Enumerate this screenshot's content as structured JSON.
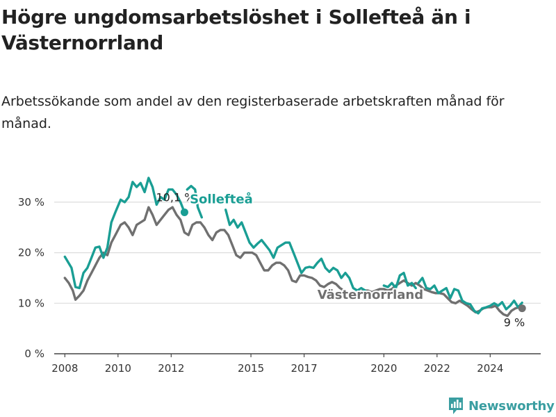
{
  "header": {
    "title": "Högre ungdomsarbetslöshet i Sollefteå än i Västernorrland",
    "subtitle": "Arbetssökande som andel av den registerbaserade arbetskraften månad för månad."
  },
  "brand": {
    "name": "Newsworthy",
    "icon": "bar-chart-logo-icon"
  },
  "chart_data": {
    "type": "line",
    "title": "Högre ungdomsarbetslöshet i Sollefteå än i Västernorrland",
    "subtitle": "Arbetssökande som andel av den registerbaserade arbetskraften månad för månad.",
    "xlabel": "",
    "ylabel": "",
    "xlim": [
      2007.6,
      2025.9
    ],
    "ylim": [
      0,
      33
    ],
    "x_ticks": [
      {
        "value": 2008,
        "label": "2008"
      },
      {
        "value": 2010,
        "label": "2010"
      },
      {
        "value": 2012,
        "label": "2012"
      },
      {
        "value": 2015,
        "label": "2015"
      },
      {
        "value": 2017,
        "label": "2017"
      },
      {
        "value": 2020,
        "label": "2020"
      },
      {
        "value": 2022,
        "label": "2022"
      },
      {
        "value": 2024,
        "label": "2024"
      }
    ],
    "y_ticks": [
      {
        "value": 0,
        "label": "0 %"
      },
      {
        "value": 10,
        "label": "10 %"
      },
      {
        "value": 20,
        "label": "20 %"
      },
      {
        "value": 30,
        "label": "30 %"
      }
    ],
    "grid": true,
    "series": [
      {
        "name": "Sollefteå",
        "color": "#1a9e94",
        "end_label": "10,1 %",
        "points": [
          [
            2008.0,
            19.2
          ],
          [
            2008.25,
            17
          ],
          [
            2008.4,
            13.2
          ],
          [
            2008.55,
            13
          ],
          [
            2008.7,
            16
          ],
          [
            2008.85,
            17
          ],
          [
            2009.0,
            19
          ],
          [
            2009.15,
            21
          ],
          [
            2009.3,
            21.2
          ],
          [
            2009.45,
            19
          ],
          [
            2009.6,
            21
          ],
          [
            2009.75,
            26
          ],
          [
            2009.9,
            28
          ],
          [
            2010.1,
            30.5
          ],
          [
            2010.25,
            30
          ],
          [
            2010.4,
            31
          ],
          [
            2010.55,
            34
          ],
          [
            2010.7,
            33
          ],
          [
            2010.85,
            33.8
          ],
          [
            2011.0,
            32
          ],
          [
            2011.15,
            34.8
          ],
          [
            2011.3,
            33
          ],
          [
            2011.45,
            29.5
          ],
          [
            2011.6,
            31
          ],
          [
            2011.75,
            30.5
          ],
          [
            2011.9,
            32.5
          ],
          [
            2012.05,
            32.5
          ],
          [
            2012.2,
            31.5
          ],
          [
            2012.35,
            30
          ],
          [
            2012.5,
            28
          ]
        ]
      },
      {
        "name": "Sollefteå",
        "color": "#1a9e94",
        "points": [
          [
            2012.6,
            32.5
          ],
          [
            2012.75,
            33.2
          ],
          [
            2012.9,
            32.5
          ],
          [
            2013.0,
            29
          ],
          [
            2013.15,
            27
          ]
        ]
      },
      {
        "name": "Sollefteå",
        "color": "#1a9e94",
        "points": [
          [
            2014.05,
            28.5
          ],
          [
            2014.2,
            25.5
          ],
          [
            2014.35,
            26.5
          ],
          [
            2014.5,
            25
          ],
          [
            2014.65,
            26
          ],
          [
            2014.8,
            24
          ],
          [
            2014.95,
            22
          ],
          [
            2015.1,
            21
          ],
          [
            2015.25,
            21.8
          ],
          [
            2015.4,
            22.5
          ],
          [
            2015.55,
            21.5
          ],
          [
            2015.7,
            20.5
          ],
          [
            2015.85,
            19
          ],
          [
            2016.0,
            21
          ],
          [
            2016.15,
            21.5
          ],
          [
            2016.3,
            22
          ],
          [
            2016.45,
            22
          ],
          [
            2016.6,
            20
          ],
          [
            2016.75,
            18
          ],
          [
            2016.9,
            16
          ],
          [
            2017.05,
            17
          ],
          [
            2017.2,
            17.2
          ],
          [
            2017.35,
            17
          ],
          [
            2017.5,
            18
          ],
          [
            2017.65,
            18.8
          ],
          [
            2017.8,
            17
          ],
          [
            2017.95,
            16.2
          ],
          [
            2018.1,
            17
          ],
          [
            2018.25,
            16.5
          ],
          [
            2018.4,
            15
          ],
          [
            2018.55,
            16
          ],
          [
            2018.7,
            15
          ],
          [
            2018.85,
            13
          ],
          [
            2019.0,
            12.5
          ],
          [
            2019.15,
            13
          ],
          [
            2019.3,
            12.5
          ]
        ]
      },
      {
        "name": "Sollefteå",
        "color": "#1a9e94",
        "points": [
          [
            2020.0,
            13.5
          ],
          [
            2020.15,
            13.2
          ],
          [
            2020.3,
            14
          ],
          [
            2020.45,
            13
          ],
          [
            2020.6,
            15.5
          ],
          [
            2020.75,
            16
          ],
          [
            2020.9,
            13.5
          ],
          [
            2021.05,
            14
          ],
          [
            2021.2,
            13
          ]
        ]
      },
      {
        "name": "Sollefteå",
        "color": "#1a9e94",
        "points": [
          [
            2021.3,
            14
          ],
          [
            2021.45,
            15
          ],
          [
            2021.6,
            13
          ],
          [
            2021.75,
            12.8
          ],
          [
            2021.9,
            13.5
          ],
          [
            2022.05,
            12
          ],
          [
            2022.2,
            12.5
          ],
          [
            2022.35,
            13
          ],
          [
            2022.5,
            11
          ],
          [
            2022.65,
            12.8
          ],
          [
            2022.8,
            12.5
          ],
          [
            2022.95,
            10.5
          ],
          [
            2023.1,
            10
          ],
          [
            2023.25,
            9.8
          ],
          [
            2023.4,
            8.5
          ],
          [
            2023.55,
            8
          ],
          [
            2023.7,
            9
          ],
          [
            2023.85,
            9.2
          ],
          [
            2024.0,
            9.5
          ],
          [
            2024.15,
            10
          ],
          [
            2024.3,
            9.5
          ],
          [
            2024.45,
            10.2
          ],
          [
            2024.6,
            8.8
          ],
          [
            2024.75,
            9.5
          ],
          [
            2024.9,
            10.5
          ],
          [
            2025.05,
            9.2
          ],
          [
            2025.2,
            10.1
          ]
        ]
      },
      {
        "name": "Västernorrland",
        "color": "#707070",
        "end_label": "9 %",
        "points": [
          [
            2008.0,
            15
          ],
          [
            2008.15,
            14
          ],
          [
            2008.3,
            12.5
          ],
          [
            2008.4,
            10.7
          ],
          [
            2008.55,
            11.5
          ],
          [
            2008.7,
            12.5
          ],
          [
            2008.85,
            14.5
          ],
          [
            2009.0,
            16
          ],
          [
            2009.15,
            17.5
          ],
          [
            2009.3,
            19
          ],
          [
            2009.45,
            20
          ],
          [
            2009.6,
            19.5
          ],
          [
            2009.75,
            22
          ],
          [
            2009.9,
            23.5
          ],
          [
            2010.1,
            25.5
          ],
          [
            2010.25,
            26
          ],
          [
            2010.4,
            25
          ],
          [
            2010.55,
            23.5
          ],
          [
            2010.7,
            25.5
          ],
          [
            2010.85,
            26
          ],
          [
            2011.0,
            26.5
          ],
          [
            2011.15,
            29
          ],
          [
            2011.3,
            27.5
          ],
          [
            2011.45,
            25.5
          ],
          [
            2011.6,
            26.5
          ],
          [
            2011.75,
            27.5
          ],
          [
            2011.9,
            28.5
          ],
          [
            2012.05,
            29
          ],
          [
            2012.2,
            27.5
          ],
          [
            2012.35,
            26.5
          ],
          [
            2012.5,
            24
          ],
          [
            2012.65,
            23.5
          ],
          [
            2012.8,
            25.5
          ],
          [
            2012.95,
            26
          ],
          [
            2013.1,
            26
          ],
          [
            2013.25,
            25
          ],
          [
            2013.4,
            23.5
          ],
          [
            2013.55,
            22.5
          ],
          [
            2013.7,
            24
          ],
          [
            2013.85,
            24.5
          ],
          [
            2014.0,
            24.5
          ],
          [
            2014.15,
            23.5
          ],
          [
            2014.3,
            21.5
          ],
          [
            2014.45,
            19.5
          ],
          [
            2014.6,
            19
          ],
          [
            2014.75,
            20
          ],
          [
            2014.9,
            20
          ],
          [
            2015.05,
            20
          ],
          [
            2015.2,
            19.5
          ],
          [
            2015.35,
            18
          ],
          [
            2015.5,
            16.5
          ],
          [
            2015.65,
            16.5
          ],
          [
            2015.8,
            17.5
          ],
          [
            2015.95,
            18
          ],
          [
            2016.1,
            18
          ],
          [
            2016.25,
            17.5
          ],
          [
            2016.4,
            16.5
          ],
          [
            2016.55,
            14.5
          ],
          [
            2016.7,
            14.2
          ],
          [
            2016.85,
            15.5
          ],
          [
            2017.0,
            15.5
          ],
          [
            2017.15,
            15.2
          ],
          [
            2017.3,
            15
          ],
          [
            2017.45,
            14.5
          ],
          [
            2017.6,
            13.5
          ],
          [
            2017.75,
            13.2
          ],
          [
            2017.9,
            13.8
          ],
          [
            2018.05,
            14.2
          ],
          [
            2018.2,
            13.8
          ],
          [
            2018.35,
            13
          ],
          [
            2018.5,
            12.5
          ],
          [
            2018.65,
            12
          ],
          [
            2018.8,
            12
          ],
          [
            2018.95,
            12
          ],
          [
            2019.1,
            12.2
          ],
          [
            2019.25,
            12.5
          ],
          [
            2019.4,
            12.5
          ],
          [
            2019.55,
            12.2
          ],
          [
            2019.7,
            12.5
          ],
          [
            2019.85,
            12.8
          ],
          [
            2020.0,
            12.8
          ],
          [
            2020.15,
            12.5
          ],
          [
            2020.3,
            12.8
          ],
          [
            2020.45,
            13.5
          ],
          [
            2020.6,
            14
          ],
          [
            2020.75,
            14.5
          ],
          [
            2020.9,
            14
          ],
          [
            2021.05,
            13.5
          ],
          [
            2021.2,
            14
          ],
          [
            2021.35,
            13.5
          ],
          [
            2021.5,
            12.8
          ],
          [
            2021.65,
            12.5
          ],
          [
            2021.8,
            12.2
          ],
          [
            2021.95,
            12
          ],
          [
            2022.1,
            12
          ],
          [
            2022.25,
            11.8
          ],
          [
            2022.4,
            11
          ],
          [
            2022.55,
            10.2
          ],
          [
            2022.7,
            10
          ],
          [
            2022.85,
            10.5
          ],
          [
            2023.0,
            10
          ],
          [
            2023.15,
            9.5
          ],
          [
            2023.3,
            8.8
          ],
          [
            2023.45,
            8.2
          ],
          [
            2023.6,
            8.5
          ],
          [
            2023.75,
            9
          ],
          [
            2023.9,
            9.2
          ],
          [
            2024.05,
            9.2
          ],
          [
            2024.2,
            9.5
          ],
          [
            2024.35,
            8.5
          ],
          [
            2024.5,
            7.8
          ],
          [
            2024.65,
            7.5
          ],
          [
            2024.8,
            8.5
          ],
          [
            2024.95,
            9
          ],
          [
            2025.1,
            9.2
          ],
          [
            2025.2,
            9.0
          ]
        ]
      }
    ],
    "annotations": [
      {
        "text": "Sollefteå",
        "x": 2012.7,
        "y": 29.8,
        "color": "#1a9e94"
      },
      {
        "text": "Västernorrland",
        "x": 2017.5,
        "y": 10.9,
        "color": "#707070"
      }
    ]
  }
}
